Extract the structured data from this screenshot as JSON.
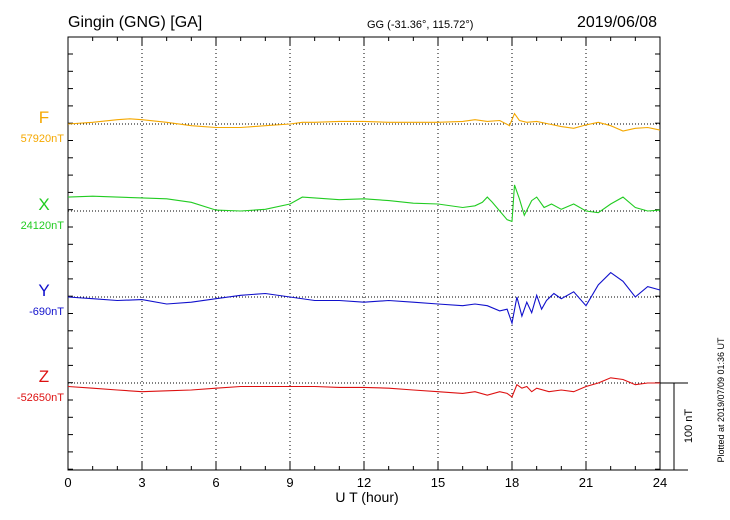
{
  "header": {
    "station": "Gingin (GNG)  [GA]",
    "coords": "GG (-31.36°, 115.72°)",
    "date": "2019/06/08"
  },
  "footer": {
    "plotted": "Plotted at 2019/07/09 01:36 UT",
    "scale_label": "100 nT"
  },
  "chart_data": {
    "type": "line",
    "xlabel": "U T (hour)",
    "xlim": [
      0,
      24
    ],
    "xticks": [
      "0",
      "3",
      "6",
      "9",
      "12",
      "15",
      "18",
      "21",
      "24"
    ],
    "scale_nT": 100,
    "grid": true,
    "series": [
      {
        "name": "F",
        "baseline_label": "57920nT",
        "color": "#f5a800",
        "x": [
          0,
          1,
          2,
          2.5,
          3,
          4,
          5,
          6,
          7,
          8,
          9,
          9.5,
          10,
          11,
          12,
          13,
          14,
          15,
          16,
          16.5,
          17,
          17.5,
          17.9,
          18.1,
          18.3,
          18.6,
          19,
          19.5,
          20,
          20.5,
          21,
          21.5,
          22,
          22.5,
          23,
          23.5,
          24
        ],
        "y": [
          0,
          2,
          5,
          6,
          5,
          2,
          -2,
          -4,
          -4,
          -2,
          0,
          2,
          2,
          3,
          3,
          2,
          2,
          2,
          3,
          5,
          3,
          4,
          -2,
          12,
          4,
          2,
          3,
          0,
          -3,
          -5,
          -1,
          2,
          -2,
          -8,
          -5,
          -4,
          -7
        ]
      },
      {
        "name": "X",
        "baseline_label": "24120nT",
        "color": "#22cc22",
        "x": [
          0,
          1,
          2,
          3,
          4,
          5,
          6,
          7,
          8,
          9,
          9.5,
          10,
          11,
          12,
          13,
          14,
          15,
          16,
          16.5,
          16.8,
          17,
          17.2,
          17.5,
          17.8,
          18,
          18.1,
          18.3,
          18.5,
          18.8,
          19,
          19.3,
          19.6,
          20,
          20.5,
          21,
          21.5,
          22,
          22.5,
          23,
          23.5,
          24
        ],
        "y": [
          16,
          17,
          16,
          15,
          14,
          10,
          1,
          0,
          2,
          8,
          16,
          15,
          13,
          14,
          12,
          9,
          8,
          4,
          6,
          10,
          16,
          10,
          0,
          -10,
          -12,
          30,
          14,
          -5,
          12,
          16,
          4,
          8,
          2,
          8,
          0,
          -2,
          8,
          16,
          4,
          0,
          1
        ]
      },
      {
        "name": "Y",
        "baseline_label": "-690nT",
        "color": "#1010cc",
        "x": [
          0,
          1,
          2,
          3,
          4,
          5,
          6,
          7,
          8,
          9,
          10,
          11,
          12,
          13,
          14,
          15,
          16,
          16.5,
          17,
          17.5,
          17.8,
          18,
          18.2,
          18.4,
          18.6,
          18.8,
          19,
          19.2,
          19.4,
          19.7,
          20,
          20.5,
          21,
          21.5,
          22,
          22.5,
          23,
          23.5,
          24
        ],
        "y": [
          0,
          -2,
          -4,
          -3,
          -8,
          -6,
          -2,
          2,
          4,
          0,
          -4,
          -4,
          -6,
          -4,
          -6,
          -8,
          -10,
          -8,
          -10,
          -16,
          -14,
          -30,
          0,
          -22,
          -6,
          -18,
          2,
          -14,
          -4,
          4,
          -2,
          6,
          -10,
          14,
          28,
          18,
          0,
          12,
          8
        ]
      },
      {
        "name": "Z",
        "baseline_label": "-52650nT",
        "color": "#dd1111",
        "x": [
          0,
          1,
          2,
          3,
          4,
          5,
          6,
          7,
          8,
          9,
          10,
          11,
          12,
          13,
          14,
          15,
          16,
          16.5,
          17,
          17.5,
          17.8,
          18,
          18.2,
          18.4,
          18.6,
          18.8,
          19,
          19.5,
          20,
          20.5,
          21,
          21.5,
          22,
          22.5,
          23,
          23.5,
          24
        ],
        "y": [
          -4,
          -6,
          -8,
          -10,
          -9,
          -8,
          -6,
          -4,
          -4,
          -4,
          -4,
          -5,
          -5,
          -6,
          -8,
          -10,
          -12,
          -10,
          -14,
          -10,
          -12,
          -16,
          -2,
          -6,
          -4,
          -10,
          -6,
          -10,
          -8,
          -10,
          -4,
          0,
          6,
          4,
          -2,
          0,
          0
        ]
      }
    ]
  }
}
